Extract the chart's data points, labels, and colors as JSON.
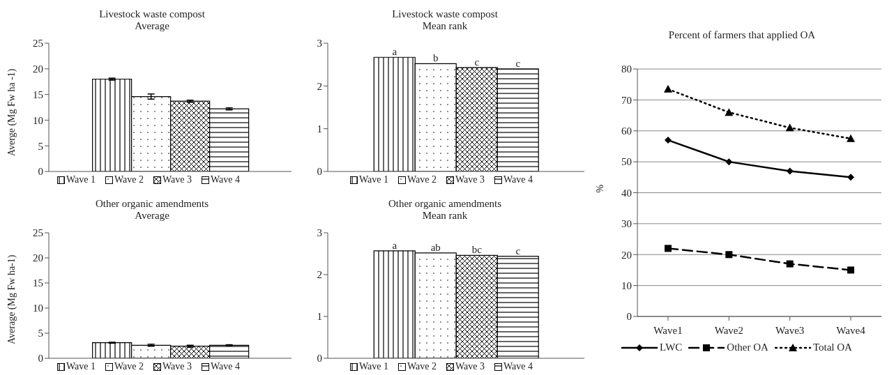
{
  "chart_data": [
    {
      "type": "bar",
      "title": "Livestock waste compost",
      "subtitle": "Average",
      "ylabel": "Averge (Mg Fw ha -1)",
      "categories": [
        null
      ],
      "ylim": [
        0,
        25
      ],
      "yticks": [
        0,
        5,
        10,
        15,
        20,
        25
      ],
      "tick_labels": "y",
      "legend": "bottom",
      "series": [
        {
          "name": "Wave 1",
          "color": "#000000",
          "values": [
            18.0
          ],
          "errors": [
            0.2
          ]
        },
        {
          "name": "Wave 2",
          "color": "#000000",
          "values": [
            14.6
          ],
          "errors": [
            0.5
          ]
        },
        {
          "name": "Wave 3",
          "color": "#000000",
          "values": [
            13.7
          ],
          "errors": [
            0.2
          ]
        },
        {
          "name": "Wave 4",
          "color": "#000000",
          "values": [
            12.2
          ],
          "errors": [
            0.2
          ]
        }
      ]
    },
    {
      "type": "bar",
      "title": "Livestock waste compost",
      "subtitle": "Mean rank",
      "categories": [
        null
      ],
      "ylim": [
        0,
        3
      ],
      "yticks": [
        0,
        1,
        2,
        3
      ],
      "tick_labels": "y",
      "legend": "bottom",
      "series": [
        {
          "name": "Wave 1",
          "color": "#000000",
          "values": [
            2.67
          ],
          "value_labels": [
            "a"
          ]
        },
        {
          "name": "Wave 2",
          "color": "#000000",
          "values": [
            2.52
          ],
          "value_labels": [
            "b"
          ]
        },
        {
          "name": "Wave 3",
          "color": "#000000",
          "values": [
            2.43
          ],
          "value_labels": [
            "c"
          ]
        },
        {
          "name": "Wave 4",
          "color": "#000000",
          "values": [
            2.4
          ],
          "value_labels": [
            "c"
          ]
        }
      ]
    },
    {
      "type": "bar",
      "title": "Other organic amendments",
      "subtitle": "Average",
      "ylabel": "Average (Mg Fw ha-1)",
      "categories": [
        null
      ],
      "ylim": [
        0,
        25
      ],
      "yticks": [
        0,
        5,
        10,
        15,
        20,
        25
      ],
      "tick_labels": "y",
      "legend": "bottom",
      "series": [
        {
          "name": "Wave 1",
          "color": "#000000",
          "values": [
            3.1
          ],
          "errors": [
            0.1
          ]
        },
        {
          "name": "Wave 2",
          "color": "#000000",
          "values": [
            2.6
          ],
          "errors": [
            0.2
          ]
        },
        {
          "name": "Wave 3",
          "color": "#000000",
          "values": [
            2.4
          ],
          "errors": [
            0.2
          ]
        },
        {
          "name": "Wave 4",
          "color": "#000000",
          "values": [
            2.6
          ],
          "errors": [
            0.1
          ]
        }
      ]
    },
    {
      "type": "bar",
      "title": "Other organic amendments",
      "subtitle": "Mean rank",
      "categories": [
        null
      ],
      "ylim": [
        0,
        3
      ],
      "yticks": [
        0,
        1,
        2,
        3
      ],
      "tick_labels": "y",
      "legend": "bottom",
      "series": [
        {
          "name": "Wave 1",
          "color": "#000000",
          "values": [
            2.57
          ],
          "value_labels": [
            "a"
          ]
        },
        {
          "name": "Wave 2",
          "color": "#000000",
          "values": [
            2.52
          ],
          "value_labels": [
            "ab"
          ]
        },
        {
          "name": "Wave 3",
          "color": "#000000",
          "values": [
            2.46
          ],
          "value_labels": [
            "bc"
          ]
        },
        {
          "name": "Wave 4",
          "color": "#000000",
          "values": [
            2.44
          ],
          "value_labels": [
            "c"
          ]
        }
      ]
    },
    {
      "type": "line",
      "title": "Percent of farmers that applied OA",
      "ylabel": "%",
      "categories": [
        "Wave1",
        "Wave2",
        "Wave3",
        "Wave4"
      ],
      "ylim": [
        0,
        80
      ],
      "yticks": [
        0,
        10,
        20,
        30,
        40,
        50,
        60,
        70,
        80
      ],
      "grid": "y",
      "legend": "bottom",
      "series": [
        {
          "name": "LWC",
          "color": "#000000",
          "marker": "diamond",
          "line_style": "solid",
          "values": [
            57,
            50,
            47,
            45
          ]
        },
        {
          "name": "Other OA",
          "color": "#000000",
          "marker": "square",
          "line_style": "dashed",
          "values": [
            22,
            20,
            17,
            15
          ]
        },
        {
          "name": "Total OA",
          "color": "#000000",
          "marker": "triangle",
          "line_style": "dotted",
          "values": [
            73.5,
            66,
            61,
            57.5
          ]
        }
      ]
    }
  ]
}
